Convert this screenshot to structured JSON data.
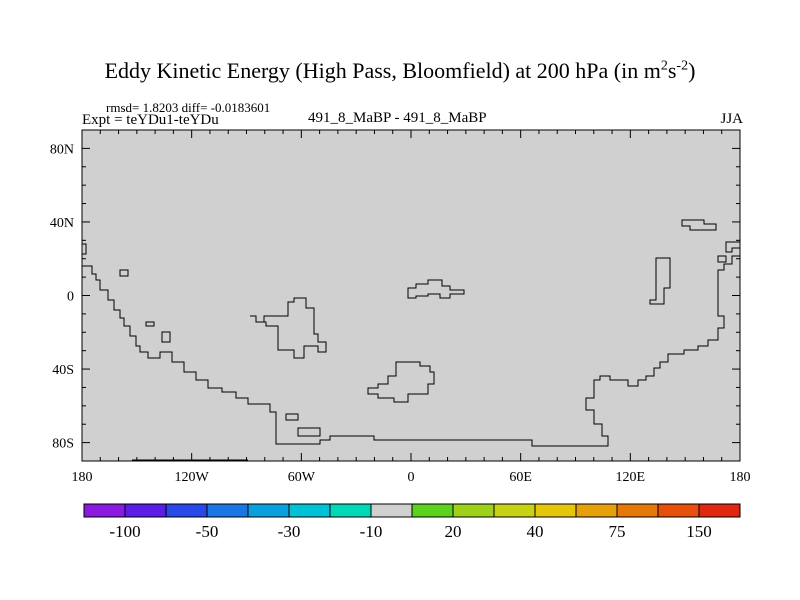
{
  "chart_data": {
    "type": "heatmap",
    "title": "Eddy Kinetic Energy (High Pass, Bloomfield) at 200 hPa (in m",
    "title_units": [
      "2",
      "s",
      "-2",
      ")"
    ],
    "stats_line": "rmsd= 1.8203 diff= -0.0183601",
    "left_label": "Expt = teYDu1-teYDu",
    "center_label": "491_8_MaBP - 491_8_MaBP",
    "right_label": "JJA",
    "x_ticks": [
      {
        "value": -180,
        "label": "180"
      },
      {
        "value": -120,
        "label": "120W"
      },
      {
        "value": -60,
        "label": "60W"
      },
      {
        "value": 0,
        "label": "0"
      },
      {
        "value": 60,
        "label": "60E"
      },
      {
        "value": 120,
        "label": "120E"
      },
      {
        "value": 180,
        "label": "180"
      }
    ],
    "y_ticks": [
      {
        "value": 80,
        "label": "80N"
      },
      {
        "value": 40,
        "label": "40N"
      },
      {
        "value": 0,
        "label": "0"
      },
      {
        "value": -40,
        "label": "40S"
      },
      {
        "value": -80,
        "label": "80S"
      }
    ],
    "xlim": [
      -180,
      180
    ],
    "ylim": [
      -90,
      90
    ],
    "field_value_class": "-10 to 20",
    "field_color": "#d0d0d0",
    "colorbar": {
      "colors": [
        "#8a1ae0",
        "#5a1ee6",
        "#2848e8",
        "#1a76e6",
        "#0aa0e0",
        "#00c2d6",
        "#00d8b8",
        "#d0d0d0",
        "#5ad21e",
        "#9ed21a",
        "#c8d214",
        "#e6c60a",
        "#e6a00a",
        "#e6780a",
        "#e6500a",
        "#e02810"
      ],
      "labels": [
        {
          "boundary": 1,
          "text": "-100"
        },
        {
          "boundary": 3,
          "text": "-50"
        },
        {
          "boundary": 5,
          "text": "-30"
        },
        {
          "boundary": 7,
          "text": "-10"
        },
        {
          "boundary": 9,
          "text": "20"
        },
        {
          "boundary": 11,
          "text": "40"
        },
        {
          "boundary": 13,
          "text": "75"
        },
        {
          "boundary": 15,
          "text": "150"
        }
      ]
    }
  }
}
